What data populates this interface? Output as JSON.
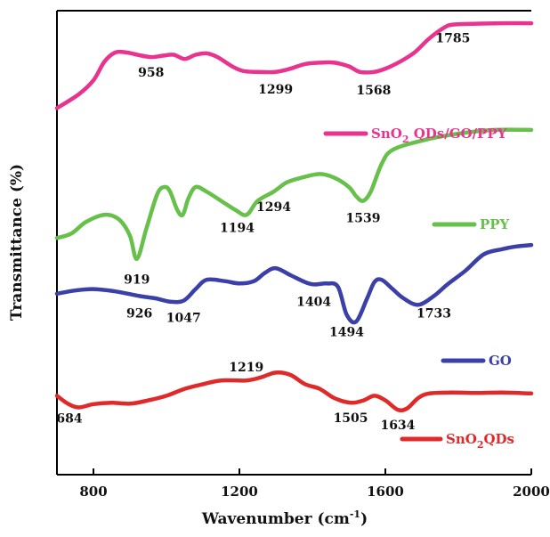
{
  "chart_data": {
    "type": "line",
    "xlabel": "Wavenumber (cm",
    "xlabel_sup": "-1",
    "xlabel_suffix": ")",
    "ylabel": "Transmittance (%)",
    "xlim": [
      700,
      2000
    ],
    "ylim": [
      0,
      100
    ],
    "xticks": [
      800,
      1200,
      1600,
      2000
    ],
    "y_tick_labels": false,
    "grid": false,
    "legend": "inline-right",
    "series": [
      {
        "id": "sno2-qds-go-ppy",
        "name": "SnO2 QDs/GO/PPY",
        "name_main": "SnO",
        "name_sub": "2",
        "name_rest": " QDs/GO/PPY",
        "color": "#e8338f",
        "points": [
          [
            700,
            79
          ],
          [
            760,
            82
          ],
          [
            800,
            85
          ],
          [
            830,
            89
          ],
          [
            860,
            91
          ],
          [
            890,
            91
          ],
          [
            920,
            90.5
          ],
          [
            958,
            90
          ],
          [
            990,
            90.3
          ],
          [
            1020,
            90.5
          ],
          [
            1050,
            89.6
          ],
          [
            1080,
            90.5
          ],
          [
            1110,
            90.8
          ],
          [
            1140,
            90
          ],
          [
            1180,
            88
          ],
          [
            1210,
            87
          ],
          [
            1250,
            86.8
          ],
          [
            1299,
            86.8
          ],
          [
            1340,
            87.5
          ],
          [
            1380,
            88.5
          ],
          [
            1420,
            88.8
          ],
          [
            1460,
            88.8
          ],
          [
            1500,
            88
          ],
          [
            1530,
            86.8
          ],
          [
            1568,
            86.8
          ],
          [
            1600,
            87.5
          ],
          [
            1640,
            89
          ],
          [
            1680,
            91
          ],
          [
            1720,
            94
          ],
          [
            1760,
            96.3
          ],
          [
            1785,
            97
          ],
          [
            1850,
            97.2
          ],
          [
            1920,
            97.3
          ],
          [
            2000,
            97.3
          ]
        ],
        "peaks": [
          {
            "x": 958,
            "label": "958"
          },
          {
            "x": 1299,
            "label": "1299"
          },
          {
            "x": 1568,
            "label": "1568"
          },
          {
            "x": 1785,
            "label": "1785"
          }
        ]
      },
      {
        "id": "ppy",
        "name": "PPY",
        "color": "#66c04a",
        "points": [
          [
            700,
            51
          ],
          [
            740,
            52
          ],
          [
            780,
            54.5
          ],
          [
            830,
            56
          ],
          [
            870,
            55
          ],
          [
            900,
            51.5
          ],
          [
            919,
            46.5
          ],
          [
            945,
            53
          ],
          [
            975,
            60.5
          ],
          [
            995,
            62
          ],
          [
            1010,
            61
          ],
          [
            1030,
            57
          ],
          [
            1045,
            56
          ],
          [
            1060,
            59.5
          ],
          [
            1080,
            62
          ],
          [
            1110,
            61
          ],
          [
            1150,
            59
          ],
          [
            1190,
            57
          ],
          [
            1220,
            56
          ],
          [
            1250,
            59
          ],
          [
            1294,
            61
          ],
          [
            1330,
            63
          ],
          [
            1370,
            64
          ],
          [
            1420,
            64.8
          ],
          [
            1460,
            64
          ],
          [
            1500,
            62
          ],
          [
            1520,
            60
          ],
          [
            1539,
            59
          ],
          [
            1560,
            61
          ],
          [
            1590,
            67
          ],
          [
            1620,
            70
          ],
          [
            1700,
            72
          ],
          [
            1800,
            73.5
          ],
          [
            1900,
            74.3
          ],
          [
            2000,
            74.3
          ]
        ],
        "peaks": [
          {
            "x": 919,
            "label": "919"
          },
          {
            "x": 1194,
            "label": "1194"
          },
          {
            "x": 1294,
            "label": "1294"
          },
          {
            "x": 1539,
            "label": "1539"
          }
        ]
      },
      {
        "id": "go",
        "name": "GO",
        "color": "#3b3fa8",
        "points": [
          [
            700,
            39
          ],
          [
            750,
            39.7
          ],
          [
            800,
            40
          ],
          [
            860,
            39.5
          ],
          [
            926,
            38.5
          ],
          [
            970,
            38
          ],
          [
            1010,
            37.3
          ],
          [
            1047,
            37.5
          ],
          [
            1080,
            40
          ],
          [
            1110,
            42
          ],
          [
            1160,
            41.7
          ],
          [
            1200,
            41.2
          ],
          [
            1240,
            41.7
          ],
          [
            1270,
            43.5
          ],
          [
            1300,
            44.5
          ],
          [
            1340,
            43
          ],
          [
            1380,
            41.5
          ],
          [
            1404,
            41
          ],
          [
            1440,
            41.2
          ],
          [
            1470,
            40.5
          ],
          [
            1494,
            34.5
          ],
          [
            1520,
            33
          ],
          [
            1550,
            38
          ],
          [
            1570,
            41.5
          ],
          [
            1590,
            42
          ],
          [
            1620,
            40
          ],
          [
            1650,
            38
          ],
          [
            1690,
            36.6
          ],
          [
            1733,
            38.5
          ],
          [
            1770,
            41
          ],
          [
            1820,
            44
          ],
          [
            1870,
            47.5
          ],
          [
            1920,
            48.6
          ],
          [
            1960,
            49.2
          ],
          [
            2000,
            49.5
          ]
        ],
        "peaks": [
          {
            "x": 926,
            "label": "926"
          },
          {
            "x": 1047,
            "label": "1047"
          },
          {
            "x": 1404,
            "label": "1404"
          },
          {
            "x": 1494,
            "label": "1494"
          },
          {
            "x": 1733,
            "label": "1733"
          }
        ]
      },
      {
        "id": "sno2-qds",
        "name": "SnO2QDs",
        "name_main": "SnO",
        "name_sub": "2",
        "name_rest": "QDs",
        "color": "#e02a2a",
        "points": [
          [
            700,
            17
          ],
          [
            730,
            15.3
          ],
          [
            760,
            14.5
          ],
          [
            800,
            15.2
          ],
          [
            850,
            15.5
          ],
          [
            900,
            15.3
          ],
          [
            950,
            16
          ],
          [
            1000,
            17
          ],
          [
            1050,
            18.5
          ],
          [
            1100,
            19.5
          ],
          [
            1150,
            20.3
          ],
          [
            1219,
            20.3
          ],
          [
            1260,
            21
          ],
          [
            1300,
            22
          ],
          [
            1340,
            21.5
          ],
          [
            1380,
            19.5
          ],
          [
            1420,
            18.5
          ],
          [
            1460,
            16.5
          ],
          [
            1505,
            15.5
          ],
          [
            1540,
            16
          ],
          [
            1570,
            17
          ],
          [
            1600,
            16
          ],
          [
            1634,
            14
          ],
          [
            1660,
            14.3
          ],
          [
            1690,
            16.5
          ],
          [
            1720,
            17.5
          ],
          [
            1780,
            17.7
          ],
          [
            1850,
            17.6
          ],
          [
            1920,
            17.7
          ],
          [
            2000,
            17.5
          ]
        ],
        "peaks": [
          {
            "x": 684,
            "label": "684"
          },
          {
            "x": 1219,
            "label": "1219"
          },
          {
            "x": 1505,
            "label": "1505"
          },
          {
            "x": 1634,
            "label": "1634"
          }
        ]
      }
    ]
  }
}
